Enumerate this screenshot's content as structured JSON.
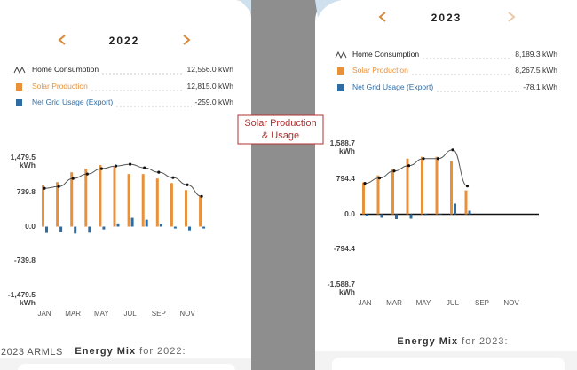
{
  "overlay_label": "Solar Production\n& Usage",
  "watermark": "2023 ARMLS",
  "chart_data": [
    {
      "type": "bar",
      "title": "2022",
      "categories": [
        "JAN",
        null,
        "MAR",
        null,
        "MAY",
        null,
        "JUL",
        null,
        "SEP",
        null,
        "NOV",
        null
      ],
      "series": [
        {
          "name": "Home Consumption",
          "type": "line",
          "color": "#555555",
          "total": "12,556.0 kWh",
          "values": [
            826,
            864,
            1037,
            1133,
            1248,
            1306,
            1344,
            1267,
            1171,
            1056,
            902,
            653
          ]
        },
        {
          "name": "Solar Production",
          "type": "bar",
          "color": "#e8913a",
          "total": "12,815.0 kWh",
          "values": [
            902,
            960,
            1170,
            1250,
            1325,
            1290,
            1133,
            1133,
            1037,
            940,
            787,
            672
          ]
        },
        {
          "name": "Net Grid Usage (Export)",
          "type": "bar",
          "color": "#2e6da4",
          "total": "-259.0 kWh",
          "values": [
            -135,
            -120,
            -150,
            -130,
            -60,
            70,
            190,
            150,
            60,
            -40,
            -80,
            -40
          ]
        }
      ],
      "ylim": [
        -1479.5,
        1479.5
      ],
      "yticks": [
        {
          "value": 1479.5,
          "label": "1,479.5\nkWh"
        },
        739.8,
        {
          "value": 0,
          "label": "0.0"
        },
        -739.8,
        {
          "value": -1479.5,
          "label": "-1,479.5\nkWh"
        }
      ],
      "zero_line": false,
      "footer": {
        "title": "Energy Mix",
        "subtitle": "for 2022:"
      }
    },
    {
      "type": "bar",
      "title": "2023",
      "categories": [
        "JAN",
        null,
        "MAR",
        null,
        "MAY",
        null,
        "JUL",
        null,
        "SEP",
        null,
        "NOV",
        null
      ],
      "series": [
        {
          "name": "Home Consumption",
          "type": "line",
          "color": "#555555",
          "total": "8,189.3 kWh",
          "values": [
            697,
            816,
            975,
            1095,
            1254,
            1254,
            1453,
            637,
            null,
            null,
            null,
            null
          ]
        },
        {
          "name": "Solar Production",
          "type": "bar",
          "color": "#e8913a",
          "total": "8,267.5 kWh",
          "values": [
            716,
            875,
            1015,
            1254,
            1294,
            1294,
            1194,
            537,
            null,
            null,
            null,
            null
          ]
        },
        {
          "name": "Net Grid Usage (Export)",
          "type": "bar",
          "color": "#2e6da4",
          "total": "-78.1 kWh",
          "values": [
            -40,
            -80,
            -110,
            -100,
            -20,
            0,
            240,
            80,
            null,
            null,
            null,
            null
          ]
        }
      ],
      "ylim": [
        -1588.7,
        1588.7
      ],
      "yticks": [
        {
          "value": 1588.7,
          "label": "1,588.7\nkWh"
        },
        794.4,
        {
          "value": 0,
          "label": "0.0"
        },
        -794.4,
        {
          "value": -1588.7,
          "label": "-1,588.7\nkWh"
        }
      ],
      "zero_line": true,
      "footer": {
        "title": "Energy Mix",
        "subtitle": "for 2023:"
      }
    }
  ]
}
